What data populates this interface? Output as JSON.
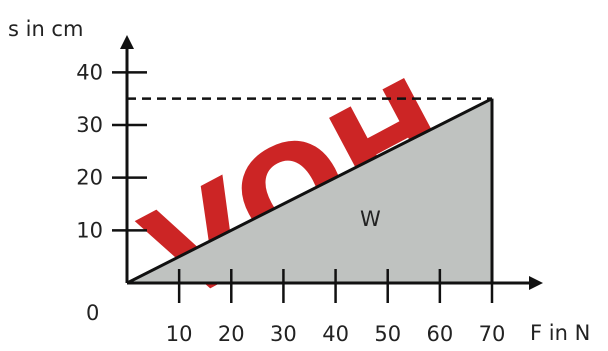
{
  "chart_data": {
    "type": "area",
    "ylabel": "s in cm",
    "xlabel": "F in N",
    "origin_label": "0",
    "xlim": [
      0,
      70
    ],
    "ylim": [
      0,
      40
    ],
    "x_ticks": [
      10,
      20,
      30,
      40,
      50,
      60,
      70
    ],
    "y_ticks": [
      10,
      20,
      30,
      40
    ],
    "series": [
      {
        "x": [
          0,
          70
        ],
        "y": [
          0,
          35
        ]
      }
    ],
    "reference_line": {
      "y": 35,
      "style": "dashed"
    },
    "region_label": "W",
    "colors": {
      "fill": "#bfc2c0",
      "line": "#111111",
      "axis": "#111111"
    }
  },
  "watermark": {
    "text": "VOH"
  }
}
